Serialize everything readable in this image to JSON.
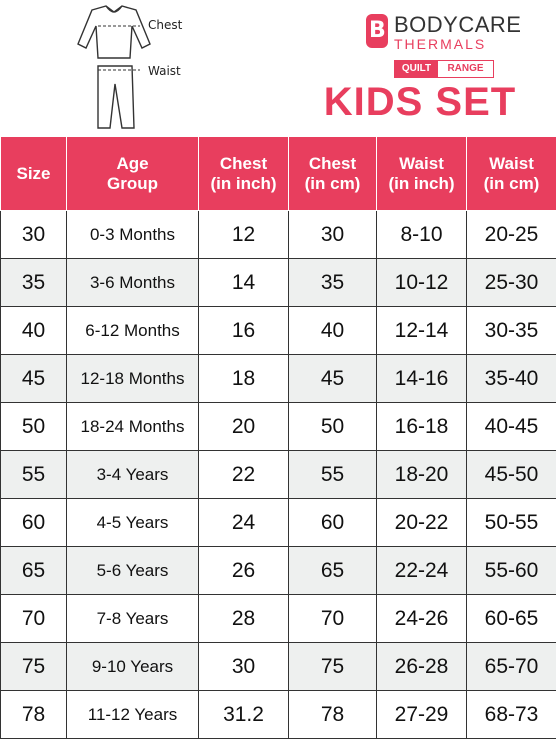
{
  "diagram": {
    "chest_label": "Chest",
    "waist_label": "Waist"
  },
  "brand": {
    "logo_glyph": "B",
    "name": "BODYCARE",
    "sub": "THERMALS",
    "quilt": "QUILT",
    "range": "RANGE",
    "accent_color": "#e83e5e"
  },
  "title": "KIDS SET",
  "table": {
    "headers": [
      [
        "Size"
      ],
      [
        "Age",
        "Group"
      ],
      [
        "Chest",
        "(in inch)"
      ],
      [
        "Chest",
        "(in cm)"
      ],
      [
        "Waist",
        "(in inch)"
      ],
      [
        "Waist",
        "(in cm)"
      ]
    ],
    "rows": [
      [
        "30",
        "0-3 Months",
        "12",
        "30",
        "8-10",
        "20-25"
      ],
      [
        "35",
        "3-6 Months",
        "14",
        "35",
        "10-12",
        "25-30"
      ],
      [
        "40",
        "6-12 Months",
        "16",
        "40",
        "12-14",
        "30-35"
      ],
      [
        "45",
        "12-18 Months",
        "18",
        "45",
        "14-16",
        "35-40"
      ],
      [
        "50",
        "18-24 Months",
        "20",
        "50",
        "16-18",
        "40-45"
      ],
      [
        "55",
        "3-4 Years",
        "22",
        "55",
        "18-20",
        "45-50"
      ],
      [
        "60",
        "4-5 Years",
        "24",
        "60",
        "20-22",
        "50-55"
      ],
      [
        "65",
        "5-6 Years",
        "26",
        "65",
        "22-24",
        "55-60"
      ],
      [
        "70",
        "7-8 Years",
        "28",
        "70",
        "24-26",
        "60-65"
      ],
      [
        "75",
        "9-10 Years",
        "30",
        "75",
        "26-28",
        "65-70"
      ],
      [
        "78",
        "11-12 Years",
        "31.2",
        "78",
        "27-29",
        "68-73"
      ]
    ]
  }
}
